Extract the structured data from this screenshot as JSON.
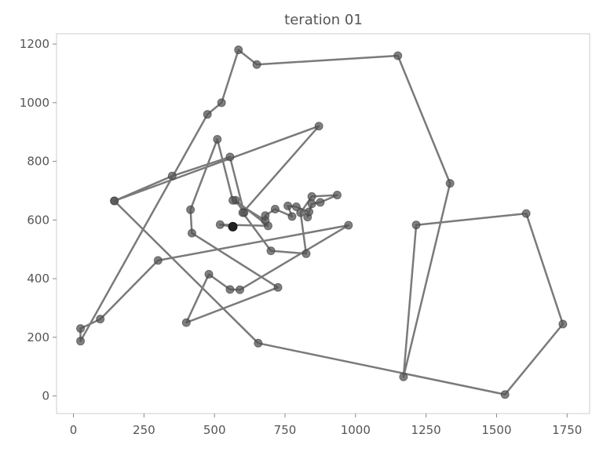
{
  "chart_data": {
    "type": "line",
    "title": "teration 01",
    "xlabel": "",
    "ylabel": "",
    "xlim": [
      -60,
      1830
    ],
    "ylim": [
      -60,
      1235
    ],
    "xticks": [
      0,
      250,
      500,
      750,
      1000,
      1250,
      1500,
      1750
    ],
    "yticks": [
      0,
      200,
      400,
      600,
      800,
      1000,
      1200
    ],
    "grid": false,
    "legend": "none",
    "line_color": "#7a7a7a",
    "marker_color": "#555555",
    "highlight_color": "#222222",
    "highlight": {
      "x": 565,
      "y": 577
    },
    "series": [
      {
        "points": [
          {
            "x": 565,
            "y": 577
          },
          {
            "x": 520,
            "y": 584
          },
          {
            "x": 690,
            "y": 580
          },
          {
            "x": 575,
            "y": 667
          },
          {
            "x": 605,
            "y": 625
          },
          {
            "x": 555,
            "y": 815
          },
          {
            "x": 350,
            "y": 750
          },
          {
            "x": 145,
            "y": 665
          },
          {
            "x": 870,
            "y": 920
          },
          {
            "x": 600,
            "y": 625
          },
          {
            "x": 700,
            "y": 495
          },
          {
            "x": 825,
            "y": 485
          },
          {
            "x": 805,
            "y": 625
          },
          {
            "x": 845,
            "y": 680
          },
          {
            "x": 935,
            "y": 685
          },
          {
            "x": 875,
            "y": 660
          },
          {
            "x": 845,
            "y": 655
          },
          {
            "x": 830,
            "y": 610
          },
          {
            "x": 835,
            "y": 628
          },
          {
            "x": 790,
            "y": 645
          },
          {
            "x": 760,
            "y": 648
          },
          {
            "x": 775,
            "y": 612
          },
          {
            "x": 715,
            "y": 637
          },
          {
            "x": 680,
            "y": 615
          },
          {
            "x": 680,
            "y": 598
          },
          {
            "x": 565,
            "y": 667
          },
          {
            "x": 510,
            "y": 875
          },
          {
            "x": 415,
            "y": 635
          },
          {
            "x": 420,
            "y": 555
          },
          {
            "x": 725,
            "y": 370
          },
          {
            "x": 400,
            "y": 250
          },
          {
            "x": 480,
            "y": 415
          },
          {
            "x": 555,
            "y": 363
          },
          {
            "x": 590,
            "y": 362
          },
          {
            "x": 975,
            "y": 582
          },
          {
            "x": 300,
            "y": 462
          },
          {
            "x": 95,
            "y": 262
          },
          {
            "x": 25,
            "y": 230
          },
          {
            "x": 25,
            "y": 187
          },
          {
            "x": 475,
            "y": 960
          },
          {
            "x": 525,
            "y": 1000
          },
          {
            "x": 585,
            "y": 1180
          },
          {
            "x": 650,
            "y": 1130
          },
          {
            "x": 1150,
            "y": 1160
          },
          {
            "x": 1335,
            "y": 725
          },
          {
            "x": 1170,
            "y": 65
          },
          {
            "x": 1215,
            "y": 583
          },
          {
            "x": 1605,
            "y": 622
          },
          {
            "x": 1735,
            "y": 245
          },
          {
            "x": 1530,
            "y": 5
          },
          {
            "x": 655,
            "y": 180
          },
          {
            "x": 145,
            "y": 665
          }
        ]
      }
    ]
  }
}
